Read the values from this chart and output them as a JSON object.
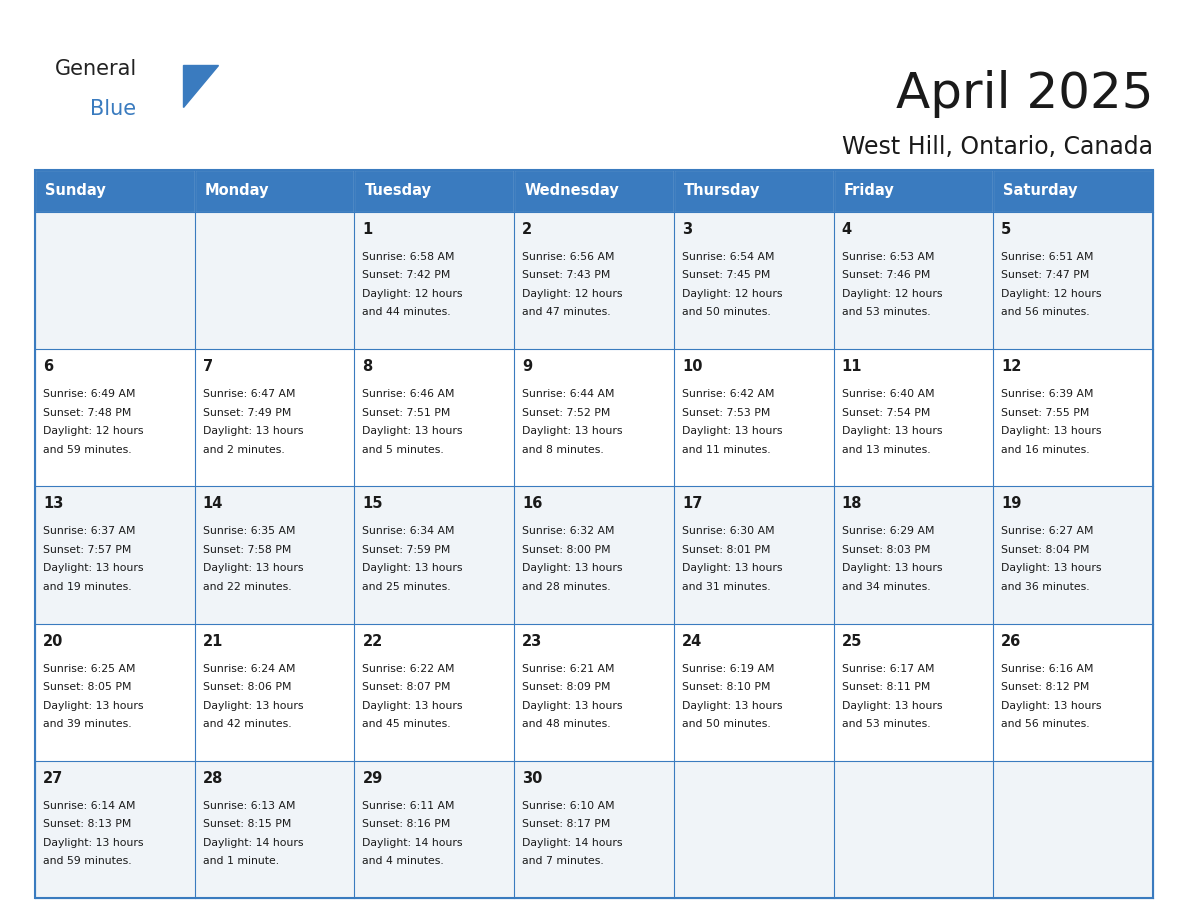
{
  "title": "April 2025",
  "subtitle": "West Hill, Ontario, Canada",
  "header_color": "#3a7bbf",
  "header_text_color": "#ffffff",
  "cell_bg_even": "#f0f4f8",
  "cell_bg_odd": "#ffffff",
  "border_color": "#3a7bbf",
  "text_color": "#1a1a1a",
  "day_names": [
    "Sunday",
    "Monday",
    "Tuesday",
    "Wednesday",
    "Thursday",
    "Friday",
    "Saturday"
  ],
  "days": [
    {
      "day": 1,
      "col": 2,
      "row": 0,
      "sunrise": "6:58 AM",
      "sunset": "7:42 PM",
      "daylight": "12 hours and 44 minutes."
    },
    {
      "day": 2,
      "col": 3,
      "row": 0,
      "sunrise": "6:56 AM",
      "sunset": "7:43 PM",
      "daylight": "12 hours and 47 minutes."
    },
    {
      "day": 3,
      "col": 4,
      "row": 0,
      "sunrise": "6:54 AM",
      "sunset": "7:45 PM",
      "daylight": "12 hours and 50 minutes."
    },
    {
      "day": 4,
      "col": 5,
      "row": 0,
      "sunrise": "6:53 AM",
      "sunset": "7:46 PM",
      "daylight": "12 hours and 53 minutes."
    },
    {
      "day": 5,
      "col": 6,
      "row": 0,
      "sunrise": "6:51 AM",
      "sunset": "7:47 PM",
      "daylight": "12 hours and 56 minutes."
    },
    {
      "day": 6,
      "col": 0,
      "row": 1,
      "sunrise": "6:49 AM",
      "sunset": "7:48 PM",
      "daylight": "12 hours and 59 minutes."
    },
    {
      "day": 7,
      "col": 1,
      "row": 1,
      "sunrise": "6:47 AM",
      "sunset": "7:49 PM",
      "daylight": "13 hours and 2 minutes."
    },
    {
      "day": 8,
      "col": 2,
      "row": 1,
      "sunrise": "6:46 AM",
      "sunset": "7:51 PM",
      "daylight": "13 hours and 5 minutes."
    },
    {
      "day": 9,
      "col": 3,
      "row": 1,
      "sunrise": "6:44 AM",
      "sunset": "7:52 PM",
      "daylight": "13 hours and 8 minutes."
    },
    {
      "day": 10,
      "col": 4,
      "row": 1,
      "sunrise": "6:42 AM",
      "sunset": "7:53 PM",
      "daylight": "13 hours and 11 minutes."
    },
    {
      "day": 11,
      "col": 5,
      "row": 1,
      "sunrise": "6:40 AM",
      "sunset": "7:54 PM",
      "daylight": "13 hours and 13 minutes."
    },
    {
      "day": 12,
      "col": 6,
      "row": 1,
      "sunrise": "6:39 AM",
      "sunset": "7:55 PM",
      "daylight": "13 hours and 16 minutes."
    },
    {
      "day": 13,
      "col": 0,
      "row": 2,
      "sunrise": "6:37 AM",
      "sunset": "7:57 PM",
      "daylight": "13 hours and 19 minutes."
    },
    {
      "day": 14,
      "col": 1,
      "row": 2,
      "sunrise": "6:35 AM",
      "sunset": "7:58 PM",
      "daylight": "13 hours and 22 minutes."
    },
    {
      "day": 15,
      "col": 2,
      "row": 2,
      "sunrise": "6:34 AM",
      "sunset": "7:59 PM",
      "daylight": "13 hours and 25 minutes."
    },
    {
      "day": 16,
      "col": 3,
      "row": 2,
      "sunrise": "6:32 AM",
      "sunset": "8:00 PM",
      "daylight": "13 hours and 28 minutes."
    },
    {
      "day": 17,
      "col": 4,
      "row": 2,
      "sunrise": "6:30 AM",
      "sunset": "8:01 PM",
      "daylight": "13 hours and 31 minutes."
    },
    {
      "day": 18,
      "col": 5,
      "row": 2,
      "sunrise": "6:29 AM",
      "sunset": "8:03 PM",
      "daylight": "13 hours and 34 minutes."
    },
    {
      "day": 19,
      "col": 6,
      "row": 2,
      "sunrise": "6:27 AM",
      "sunset": "8:04 PM",
      "daylight": "13 hours and 36 minutes."
    },
    {
      "day": 20,
      "col": 0,
      "row": 3,
      "sunrise": "6:25 AM",
      "sunset": "8:05 PM",
      "daylight": "13 hours and 39 minutes."
    },
    {
      "day": 21,
      "col": 1,
      "row": 3,
      "sunrise": "6:24 AM",
      "sunset": "8:06 PM",
      "daylight": "13 hours and 42 minutes."
    },
    {
      "day": 22,
      "col": 2,
      "row": 3,
      "sunrise": "6:22 AM",
      "sunset": "8:07 PM",
      "daylight": "13 hours and 45 minutes."
    },
    {
      "day": 23,
      "col": 3,
      "row": 3,
      "sunrise": "6:21 AM",
      "sunset": "8:09 PM",
      "daylight": "13 hours and 48 minutes."
    },
    {
      "day": 24,
      "col": 4,
      "row": 3,
      "sunrise": "6:19 AM",
      "sunset": "8:10 PM",
      "daylight": "13 hours and 50 minutes."
    },
    {
      "day": 25,
      "col": 5,
      "row": 3,
      "sunrise": "6:17 AM",
      "sunset": "8:11 PM",
      "daylight": "13 hours and 53 minutes."
    },
    {
      "day": 26,
      "col": 6,
      "row": 3,
      "sunrise": "6:16 AM",
      "sunset": "8:12 PM",
      "daylight": "13 hours and 56 minutes."
    },
    {
      "day": 27,
      "col": 0,
      "row": 4,
      "sunrise": "6:14 AM",
      "sunset": "8:13 PM",
      "daylight": "13 hours and 59 minutes."
    },
    {
      "day": 28,
      "col": 1,
      "row": 4,
      "sunrise": "6:13 AM",
      "sunset": "8:15 PM",
      "daylight": "14 hours and 1 minute."
    },
    {
      "day": 29,
      "col": 2,
      "row": 4,
      "sunrise": "6:11 AM",
      "sunset": "8:16 PM",
      "daylight": "14 hours and 4 minutes."
    },
    {
      "day": 30,
      "col": 3,
      "row": 4,
      "sunrise": "6:10 AM",
      "sunset": "8:17 PM",
      "daylight": "14 hours and 7 minutes."
    }
  ],
  "logo_text1": "General",
  "logo_text2": "Blue",
  "logo_color1": "#222222",
  "logo_color2": "#3a7bbf",
  "logo_triangle_color": "#3a7bbf",
  "num_rows": 5,
  "num_cols": 7,
  "fig_width": 11.88,
  "fig_height": 9.18,
  "fig_dpi": 100
}
